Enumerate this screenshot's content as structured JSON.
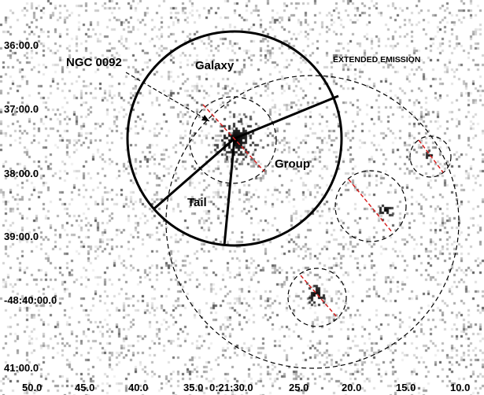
{
  "labels": {
    "ngc": "NGC 0092",
    "galaxy": "Galaxy",
    "group": "Group",
    "tail": "Tail",
    "extended": "EXTENDED EMISSION"
  },
  "dec_ticks": [
    "36:00.0",
    "37:00.0",
    "38:00.0",
    "39:00.0",
    "-48:40:00.0",
    "41:00.0"
  ],
  "ra_ticks": [
    "50.0",
    "45.0",
    "40.0",
    "35.0",
    "0:21:30.0",
    "25.0",
    "20.0",
    "15.0",
    "10.0"
  ],
  "colors": {
    "background": "#ffffff",
    "noise": "#888888",
    "source": "#000000",
    "regions": "#000000",
    "slits": "#d62020"
  }
}
